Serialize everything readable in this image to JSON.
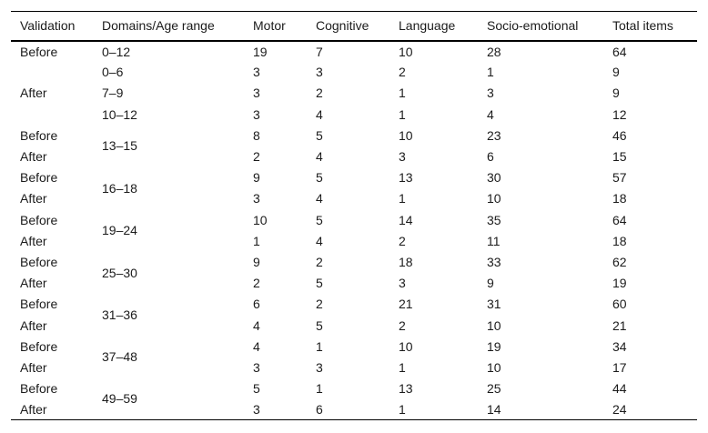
{
  "table": {
    "columns": [
      {
        "key": "validation",
        "label": "Validation"
      },
      {
        "key": "age_range",
        "label": "Domains/Age range"
      },
      {
        "key": "motor",
        "label": "Motor"
      },
      {
        "key": "cognitive",
        "label": "Cognitive"
      },
      {
        "key": "language",
        "label": "Language"
      },
      {
        "key": "socio_emotional",
        "label": "Socio-emotional"
      },
      {
        "key": "total_items",
        "label": "Total items"
      }
    ],
    "rows": [
      {
        "validation": "Before",
        "validation_rowspan": 1,
        "age_range": "0–12",
        "age_range_rowspan": 1,
        "motor": 19,
        "cognitive": 7,
        "language": 10,
        "socio_emotional": 28,
        "total_items": 64
      },
      {
        "validation": "After",
        "validation_rowspan": 3,
        "age_range": "0–6",
        "age_range_rowspan": 1,
        "motor": 3,
        "cognitive": 3,
        "language": 2,
        "socio_emotional": 1,
        "total_items": 9
      },
      {
        "age_range": "7–9",
        "age_range_rowspan": 1,
        "motor": 3,
        "cognitive": 2,
        "language": 1,
        "socio_emotional": 3,
        "total_items": 9
      },
      {
        "age_range": "10–12",
        "age_range_rowspan": 1,
        "motor": 3,
        "cognitive": 4,
        "language": 1,
        "socio_emotional": 4,
        "total_items": 12
      },
      {
        "validation": "Before",
        "validation_rowspan": 1,
        "age_range": "13–15",
        "age_range_rowspan": 2,
        "motor": 8,
        "cognitive": 5,
        "language": 10,
        "socio_emotional": 23,
        "total_items": 46
      },
      {
        "validation": "After",
        "validation_rowspan": 1,
        "motor": 2,
        "cognitive": 4,
        "language": 3,
        "socio_emotional": 6,
        "total_items": 15
      },
      {
        "validation": "Before",
        "validation_rowspan": 1,
        "age_range": "16–18",
        "age_range_rowspan": 2,
        "motor": 9,
        "cognitive": 5,
        "language": 13,
        "socio_emotional": 30,
        "total_items": 57
      },
      {
        "validation": "After",
        "validation_rowspan": 1,
        "motor": 3,
        "cognitive": 4,
        "language": 1,
        "socio_emotional": 10,
        "total_items": 18
      },
      {
        "validation": "Before",
        "validation_rowspan": 1,
        "age_range": "19–24",
        "age_range_rowspan": 2,
        "motor": 10,
        "cognitive": 5,
        "language": 14,
        "socio_emotional": 35,
        "total_items": 64
      },
      {
        "validation": "After",
        "validation_rowspan": 1,
        "motor": 1,
        "cognitive": 4,
        "language": 2,
        "socio_emotional": 11,
        "total_items": 18
      },
      {
        "validation": "Before",
        "validation_rowspan": 1,
        "age_range": "25–30",
        "age_range_rowspan": 2,
        "motor": 9,
        "cognitive": 2,
        "language": 18,
        "socio_emotional": 33,
        "total_items": 62
      },
      {
        "validation": "After",
        "validation_rowspan": 1,
        "motor": 2,
        "cognitive": 5,
        "language": 3,
        "socio_emotional": 9,
        "total_items": 19
      },
      {
        "validation": "Before",
        "validation_rowspan": 1,
        "age_range": "31–36",
        "age_range_rowspan": 2,
        "motor": 6,
        "cognitive": 2,
        "language": 21,
        "socio_emotional": 31,
        "total_items": 60
      },
      {
        "validation": "After",
        "validation_rowspan": 1,
        "motor": 4,
        "cognitive": 5,
        "language": 2,
        "socio_emotional": 10,
        "total_items": 21
      },
      {
        "validation": "Before",
        "validation_rowspan": 1,
        "age_range": "37–48",
        "age_range_rowspan": 2,
        "motor": 4,
        "cognitive": 1,
        "language": 10,
        "socio_emotional": 19,
        "total_items": 34
      },
      {
        "validation": "After",
        "validation_rowspan": 1,
        "motor": 3,
        "cognitive": 3,
        "language": 1,
        "socio_emotional": 10,
        "total_items": 17
      },
      {
        "validation": "Before",
        "validation_rowspan": 1,
        "age_range": "49–59",
        "age_range_rowspan": 2,
        "motor": 5,
        "cognitive": 1,
        "language": 13,
        "socio_emotional": 25,
        "total_items": 44
      },
      {
        "validation": "After",
        "validation_rowspan": 1,
        "motor": 3,
        "cognitive": 6,
        "language": 1,
        "socio_emotional": 14,
        "total_items": 24
      }
    ]
  },
  "colors": {
    "rule": "#000000",
    "text": "#1b1b1b",
    "background": "#ffffff"
  }
}
